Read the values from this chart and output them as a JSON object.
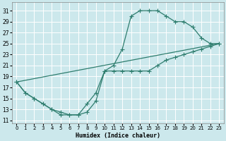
{
  "xlabel": "Humidex (Indice chaleur)",
  "bg_color": "#cce8ec",
  "grid_color": "#ffffff",
  "line_color": "#2e7d6e",
  "xlim": [
    -0.5,
    23.5
  ],
  "ylim": [
    10.5,
    32.5
  ],
  "xticks": [
    0,
    1,
    2,
    3,
    4,
    5,
    6,
    7,
    8,
    9,
    10,
    11,
    12,
    13,
    14,
    15,
    16,
    17,
    18,
    19,
    20,
    21,
    22,
    23
  ],
  "yticks": [
    11,
    13,
    15,
    17,
    19,
    21,
    23,
    25,
    27,
    29,
    31
  ],
  "series1_x": [
    0,
    1,
    2,
    3,
    4,
    5,
    6,
    7,
    8,
    9,
    10,
    11,
    12,
    13,
    14,
    15,
    16,
    17,
    18,
    19,
    20,
    21,
    22,
    23
  ],
  "series1_y": [
    18,
    16,
    15,
    14,
    13,
    12,
    12,
    12,
    14,
    16,
    20,
    21,
    24,
    30,
    31,
    31,
    31,
    30,
    29,
    29,
    28,
    26,
    25,
    25
  ],
  "series2_x": [
    0,
    1,
    2,
    3,
    4,
    5,
    6,
    7,
    8,
    9,
    10,
    11,
    12,
    13,
    14,
    15,
    16,
    17,
    18,
    19,
    20,
    21,
    22,
    23
  ],
  "series2_y": [
    18,
    16,
    15,
    14,
    13,
    12.5,
    12,
    12,
    12.5,
    14.5,
    20,
    20,
    20,
    20,
    20,
    20,
    21,
    22,
    22.5,
    23,
    23.5,
    24,
    24.5,
    25
  ],
  "series3_x": [
    0,
    23
  ],
  "series3_y": [
    18,
    25
  ],
  "marker_size": 2,
  "line_width": 0.9
}
